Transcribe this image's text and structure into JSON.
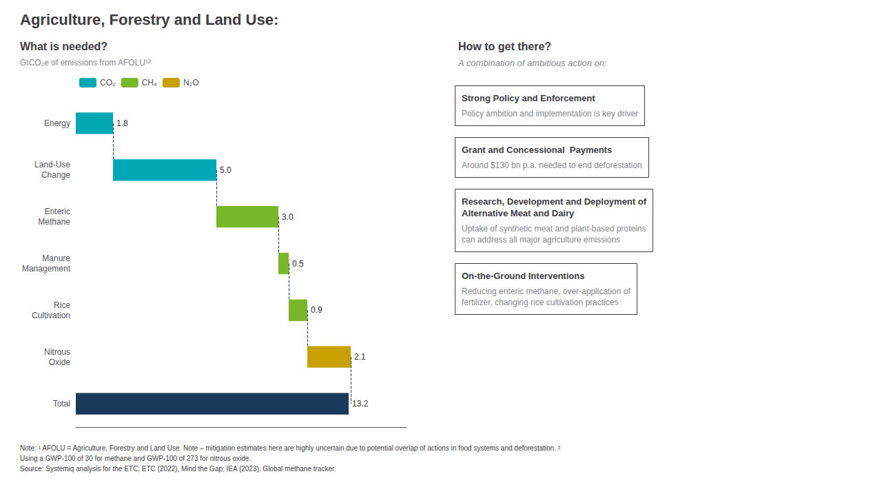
{
  "chart_data": {
    "type": "bar",
    "orientation": "horizontal",
    "title": "Agriculture, Forestry and Land Use:",
    "left_panel_title": "What is needed?",
    "left_panel_subtitle": "GtCO₂e of emissions from AFOLU¹²",
    "right_panel_title": "How to get there?",
    "right_panel_subtitle": "A combination of ambitious action on:",
    "categories": [
      "Energy",
      "Land-Use\nChange",
      "Enteric\nMethane",
      "Manure\nManagement",
      "Rice\nCultivation",
      "Nitrous\nOxide",
      "Total"
    ],
    "series": [
      {
        "name": "CO₂",
        "type": "waterfall",
        "color": "#00a8b5",
        "values": [
          1.8,
          5.0,
          null,
          null,
          null,
          null,
          null
        ],
        "value_labels": [
          "1.8",
          "5.0",
          null,
          null,
          null,
          null,
          null
        ]
      },
      {
        "name": "CH₄",
        "type": "waterfall",
        "color": "#78b828",
        "values": [
          null,
          null,
          3.0,
          0.5,
          0.9,
          null,
          null
        ],
        "value_labels": [
          null,
          null,
          "3.0",
          "0.5",
          "0.9",
          null,
          null
        ]
      },
      {
        "name": "N₂O",
        "type": "waterfall",
        "color": "#c8a000",
        "values": [
          null,
          null,
          null,
          null,
          null,
          2.1,
          null
        ],
        "value_labels": [
          null,
          null,
          null,
          null,
          null,
          "2.1",
          null
        ]
      },
      {
        "type": "total",
        "color": "#1a3a5c",
        "values": [
          null,
          null,
          null,
          null,
          null,
          null,
          13.2
        ],
        "value_labels": [
          null,
          null,
          null,
          null,
          null,
          null,
          "13.2"
        ]
      }
    ],
    "xlim": [
      0,
      16
    ],
    "data_labels": true,
    "tick_labels": "y",
    "grid": false,
    "legend": "top",
    "right_boxes": [
      {
        "title": "Strong Policy and Enforcement",
        "text": "Policy ambition and implementation is key driver"
      },
      {
        "title": "Grant and Concessional  Payments",
        "text": "Around $130 bn p.a. needed to end deforestation"
      },
      {
        "title": "Research, Development and Deployment of\nAlternative Meat and Dairy",
        "text": "Uptake of synthetic meat and plant-based proteins\ncan address all major agriculture emissions"
      },
      {
        "title": "On-the-Ground Interventions",
        "text": "Reducing enteric methane, over-application of\nfertilizer, changing rice cultivation practices"
      }
    ],
    "footnote": [
      "Note: ¹ AFOLU = Agriculture, Forestry and Land Use. Note – mitigation estimates here are highly uncertain due to potential overlap of actions in food systems and deforestation. ²",
      "Using a GWP-100 of 30 for methane and GWP-100 of 273 for nitrous oxide.",
      "Source: Systemiq analysis for the ETC; ETC (2022), Mind the Gap; IEA (2023), Global methane tracker."
    ]
  }
}
